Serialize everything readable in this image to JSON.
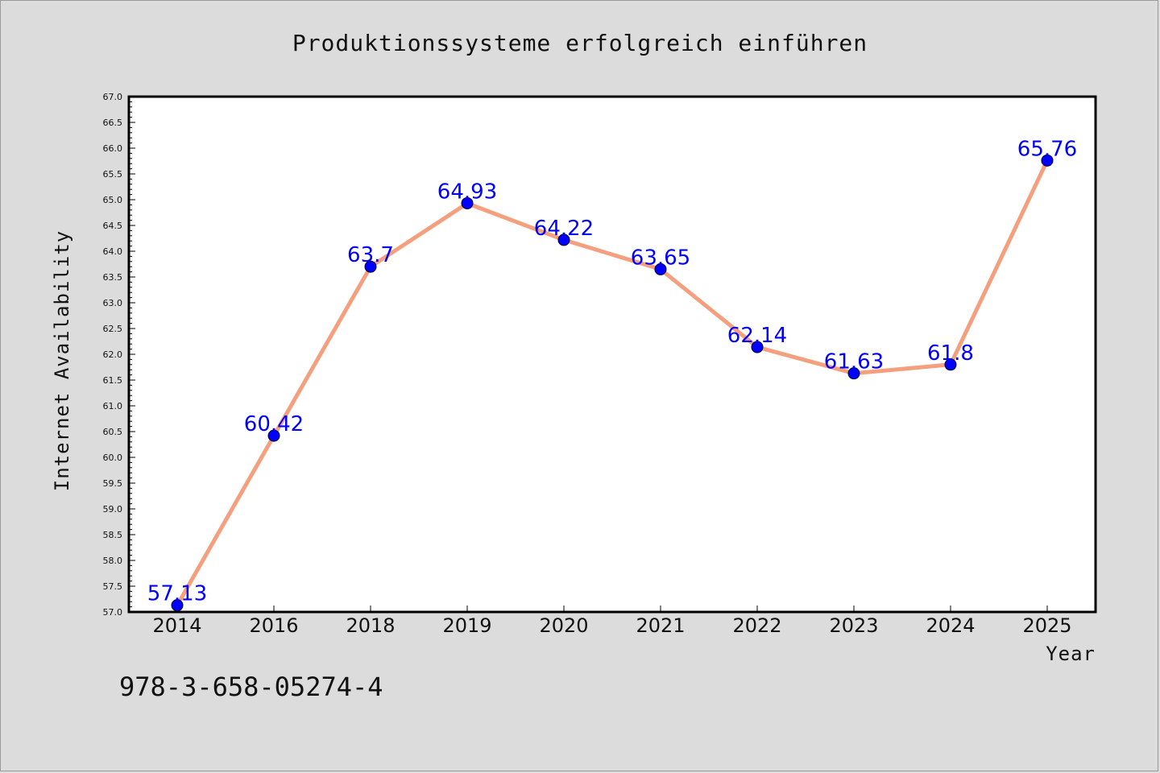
{
  "chart_data": {
    "type": "line",
    "title": "Produktionssysteme erfolgreich einführen",
    "xlabel": "Year",
    "ylabel": "Internet Availability",
    "categories": [
      "2014",
      "2016",
      "2018",
      "2019",
      "2020",
      "2021",
      "2022",
      "2023",
      "2024",
      "2025"
    ],
    "series": [
      {
        "values": [
          57.13,
          60.42,
          63.7,
          64.93,
          64.22,
          63.65,
          62.14,
          61.63,
          61.8,
          65.76
        ],
        "labels": [
          "57.13",
          "60.42",
          "63.7",
          "64.93",
          "64.22",
          "63.65",
          "62.14",
          "61.63",
          "61.8",
          "65.76"
        ],
        "line_color": "#f4a07e",
        "marker_color": "#0000ff"
      }
    ],
    "ylim": [
      57.0,
      67.0
    ],
    "yticks": [
      "57.0",
      "57.5",
      "58.0",
      "58.5",
      "59.0",
      "59.5",
      "60.0",
      "60.5",
      "61.0",
      "61.5",
      "62.0",
      "62.5",
      "63.0",
      "63.5",
      "64.0",
      "64.5",
      "65.0",
      "65.5",
      "66.0",
      "66.5",
      "67.0"
    ],
    "grid": false,
    "legend": "none"
  },
  "footer": {
    "code": "978-3-658-05274-4"
  },
  "colors": {
    "background": "#dcdcdc",
    "plot_background": "#ffffff",
    "label": "#0000ff",
    "line": "#f4a07e"
  }
}
